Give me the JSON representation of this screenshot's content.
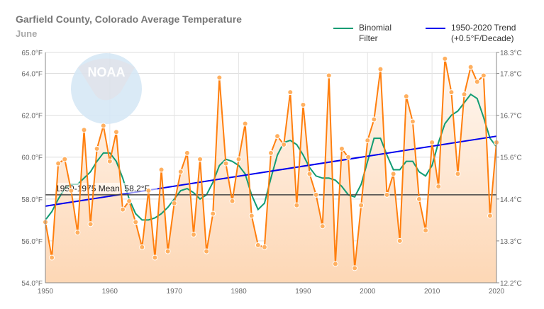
{
  "header": {
    "title": "Garfield County, Colorado Average Temperature",
    "subtitle": "June"
  },
  "legend": [
    {
      "label_line1": "Binomial",
      "label_line2": "Filter",
      "color": "#119c73"
    },
    {
      "label_line1": "1950-2020 Trend",
      "label_line2": "(+0.5°F/Decade)",
      "color": "#0000ee"
    }
  ],
  "watermark": {
    "text": "NOAA"
  },
  "chart_data": {
    "type": "line",
    "title": "Garfield County, Colorado Average Temperature",
    "subtitle": "June",
    "x": [
      1950,
      1951,
      1952,
      1953,
      1954,
      1955,
      1956,
      1957,
      1958,
      1959,
      1960,
      1961,
      1962,
      1963,
      1964,
      1965,
      1966,
      1967,
      1968,
      1969,
      1970,
      1971,
      1972,
      1973,
      1974,
      1975,
      1976,
      1977,
      1978,
      1979,
      1980,
      1981,
      1982,
      1983,
      1984,
      1985,
      1986,
      1987,
      1988,
      1989,
      1990,
      1991,
      1992,
      1993,
      1994,
      1995,
      1996,
      1997,
      1998,
      1999,
      2000,
      2001,
      2002,
      2003,
      2004,
      2005,
      2006,
      2007,
      2008,
      2009,
      2010,
      2011,
      2012,
      2013,
      2014,
      2015,
      2016,
      2017,
      2018,
      2019,
      2020
    ],
    "series": [
      {
        "name": "",
        "color": "#ff7f0e",
        "values": [
          56.9,
          55.2,
          59.7,
          59.9,
          58.4,
          56.4,
          61.3,
          56.8,
          60.4,
          61.5,
          59.8,
          61.2,
          57.5,
          57.9,
          56.9,
          55.7,
          58.4,
          55.2,
          59.4,
          55.5,
          57.8,
          59.3,
          60.2,
          56.3,
          59.9,
          55.5,
          57.3,
          63.8,
          59.7,
          57.9,
          59.9,
          61.6,
          57.2,
          55.8,
          55.7,
          60.2,
          61.0,
          60.6,
          63.1,
          57.7,
          62.5,
          59.2,
          58.2,
          56.7,
          63.9,
          54.9,
          60.4,
          60.0,
          54.7,
          57.7,
          60.8,
          61.8,
          64.2,
          58.2,
          59.2,
          56.0,
          62.9,
          61.7,
          58.0,
          56.5,
          60.7,
          58.6,
          64.7,
          63.1,
          59.2,
          63.0,
          64.3,
          63.6,
          63.9,
          57.2,
          60.7
        ]
      },
      {
        "name": "Binomial Filter",
        "color": "#119c73",
        "values": [
          57.0,
          57.4,
          58.0,
          58.5,
          58.7,
          58.7,
          59.0,
          59.3,
          59.8,
          60.2,
          60.2,
          59.8,
          59.0,
          58.0,
          57.3,
          57.0,
          57.0,
          57.1,
          57.3,
          57.6,
          58.0,
          58.4,
          58.5,
          58.3,
          58.0,
          58.2,
          58.8,
          59.6,
          59.9,
          59.8,
          59.6,
          59.2,
          58.2,
          57.5,
          57.8,
          59.0,
          60.1,
          60.7,
          60.8,
          60.6,
          60.1,
          59.5,
          59.1,
          59.0,
          59.0,
          58.9,
          58.6,
          58.2,
          58.1,
          58.7,
          59.8,
          60.9,
          60.9,
          60.1,
          59.4,
          59.4,
          59.8,
          59.8,
          59.3,
          59.1,
          59.6,
          60.7,
          61.6,
          62.0,
          62.2,
          62.6,
          63.0,
          62.8,
          61.9,
          60.9,
          60.5
        ]
      }
    ],
    "trend": {
      "name": "1950-2020 Trend (+0.5°F/Decade)",
      "color": "#0000ee",
      "start": [
        1950,
        57.66
      ],
      "end": [
        2020,
        61.0
      ]
    },
    "mean_line": {
      "label": "1950-1975 Mean: 58.2°F",
      "value": 58.2,
      "color": "#444444"
    },
    "xlim": [
      1950,
      2020
    ],
    "ylim": [
      54,
      65
    ],
    "x_ticks": [
      "1950",
      "1960",
      "1970",
      "1980",
      "1990",
      "2000",
      "2010",
      "2020"
    ],
    "y_ticks_left": [
      {
        "v": 54,
        "label": "54.0°F"
      },
      {
        "v": 56,
        "label": "56.0°F"
      },
      {
        "v": 58,
        "label": "58.0°F"
      },
      {
        "v": 60,
        "label": "60.0°F"
      },
      {
        "v": 62,
        "label": "62.0°F"
      },
      {
        "v": 64,
        "label": "64.0°F"
      },
      {
        "v": 65,
        "label": "65.0°F"
      }
    ],
    "y_ticks_right": [
      {
        "v": 54,
        "label": "12.2°C"
      },
      {
        "v": 56,
        "label": "13.3°C"
      },
      {
        "v": 58,
        "label": "14.4°C"
      },
      {
        "v": 60,
        "label": "15.6°C"
      },
      {
        "v": 62,
        "label": "16.7°C"
      },
      {
        "v": 64,
        "label": "17.8°C"
      },
      {
        "v": 65,
        "label": "18.3°C"
      }
    ],
    "grid": true,
    "legend_position": "top-right"
  }
}
